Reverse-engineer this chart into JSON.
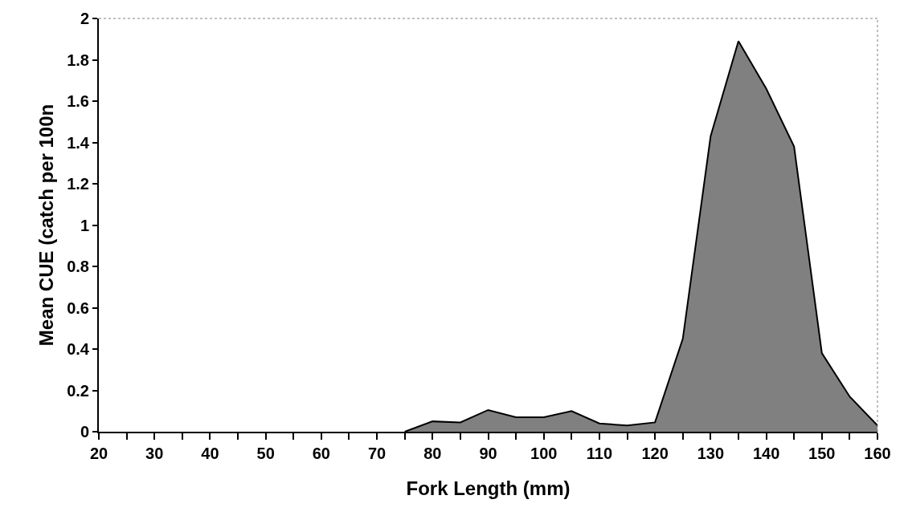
{
  "chart_data": {
    "type": "area",
    "xlabel": "Fork Length (mm)",
    "ylabel": "Mean CUE (catch per 100n",
    "x": [
      75,
      80,
      85,
      90,
      95,
      100,
      105,
      110,
      115,
      120,
      125,
      130,
      135,
      140,
      145,
      150,
      155,
      160
    ],
    "series": [
      {
        "color": "#808080",
        "values": [
          0,
          0.05,
          0.045,
          0.105,
          0.07,
          0.07,
          0.1,
          0.04,
          0.03,
          0.045,
          0.45,
          1.43,
          1.89,
          1.66,
          1.38,
          0.38,
          0.17,
          0.03
        ]
      }
    ],
    "xlim": [
      20,
      160
    ],
    "ylim": [
      0,
      2
    ],
    "xticks": [
      20,
      {
        "value": 25,
        "label": null
      },
      30,
      {
        "value": 35,
        "label": null
      },
      40,
      {
        "value": 45,
        "label": null
      },
      50,
      {
        "value": 55,
        "label": null
      },
      60,
      {
        "value": 65,
        "label": null
      },
      70,
      {
        "value": 75,
        "label": null
      },
      80,
      {
        "value": 85,
        "label": null
      },
      90,
      {
        "value": 95,
        "label": null
      },
      100,
      {
        "value": 105,
        "label": null
      },
      110,
      {
        "value": 115,
        "label": null
      },
      120,
      {
        "value": 125,
        "label": null
      },
      130,
      {
        "value": 135,
        "label": null
      },
      140,
      {
        "value": 145,
        "label": null
      },
      150,
      {
        "value": 155,
        "label": null
      },
      160
    ],
    "yticks": [
      0,
      0.2,
      0.4,
      0.6,
      0.8,
      1,
      1.2,
      1.4,
      1.6,
      1.8,
      2
    ]
  }
}
